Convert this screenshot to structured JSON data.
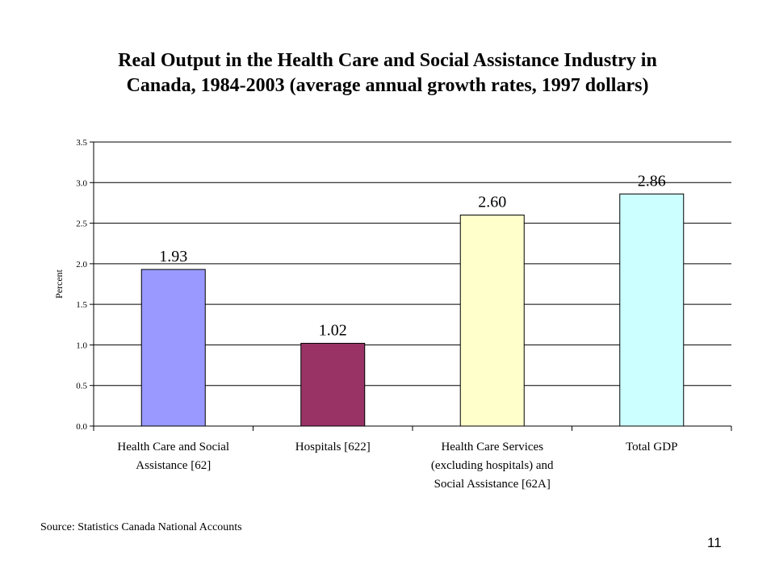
{
  "slide": {
    "title_line1": "Real Output in the Health Care and Social Assistance Industry in",
    "title_line2": "Canada, 1984-2003 (average annual growth rates, 1997 dollars)",
    "source": "Source: Statistics Canada National Accounts",
    "page_number": "11"
  },
  "chart_data": {
    "type": "bar",
    "title": "",
    "xlabel": "",
    "ylabel": "Percent",
    "ylim": [
      0,
      3.5
    ],
    "yticks": [
      "0.0",
      "0.5",
      "1.0",
      "1.5",
      "2.0",
      "2.5",
      "3.0",
      "3.5"
    ],
    "ytick_values": [
      0,
      0.5,
      1.0,
      1.5,
      2.0,
      2.5,
      3.0,
      3.5
    ],
    "grid": true,
    "legend": "none",
    "categories": [
      [
        "Health Care and Social",
        "Assistance [62]"
      ],
      [
        "Hospitals [622]"
      ],
      [
        "Health Care Services",
        "(excluding hospitals) and",
        "Social Assistance [62A]"
      ],
      [
        "Total GDP"
      ]
    ],
    "values": [
      1.93,
      1.02,
      2.6,
      2.86
    ],
    "data_labels": [
      "1.93",
      "1.02",
      "2.60",
      "2.86"
    ],
    "colors": [
      "#9999ff",
      "#993366",
      "#ffffcc",
      "#ccffff"
    ]
  }
}
